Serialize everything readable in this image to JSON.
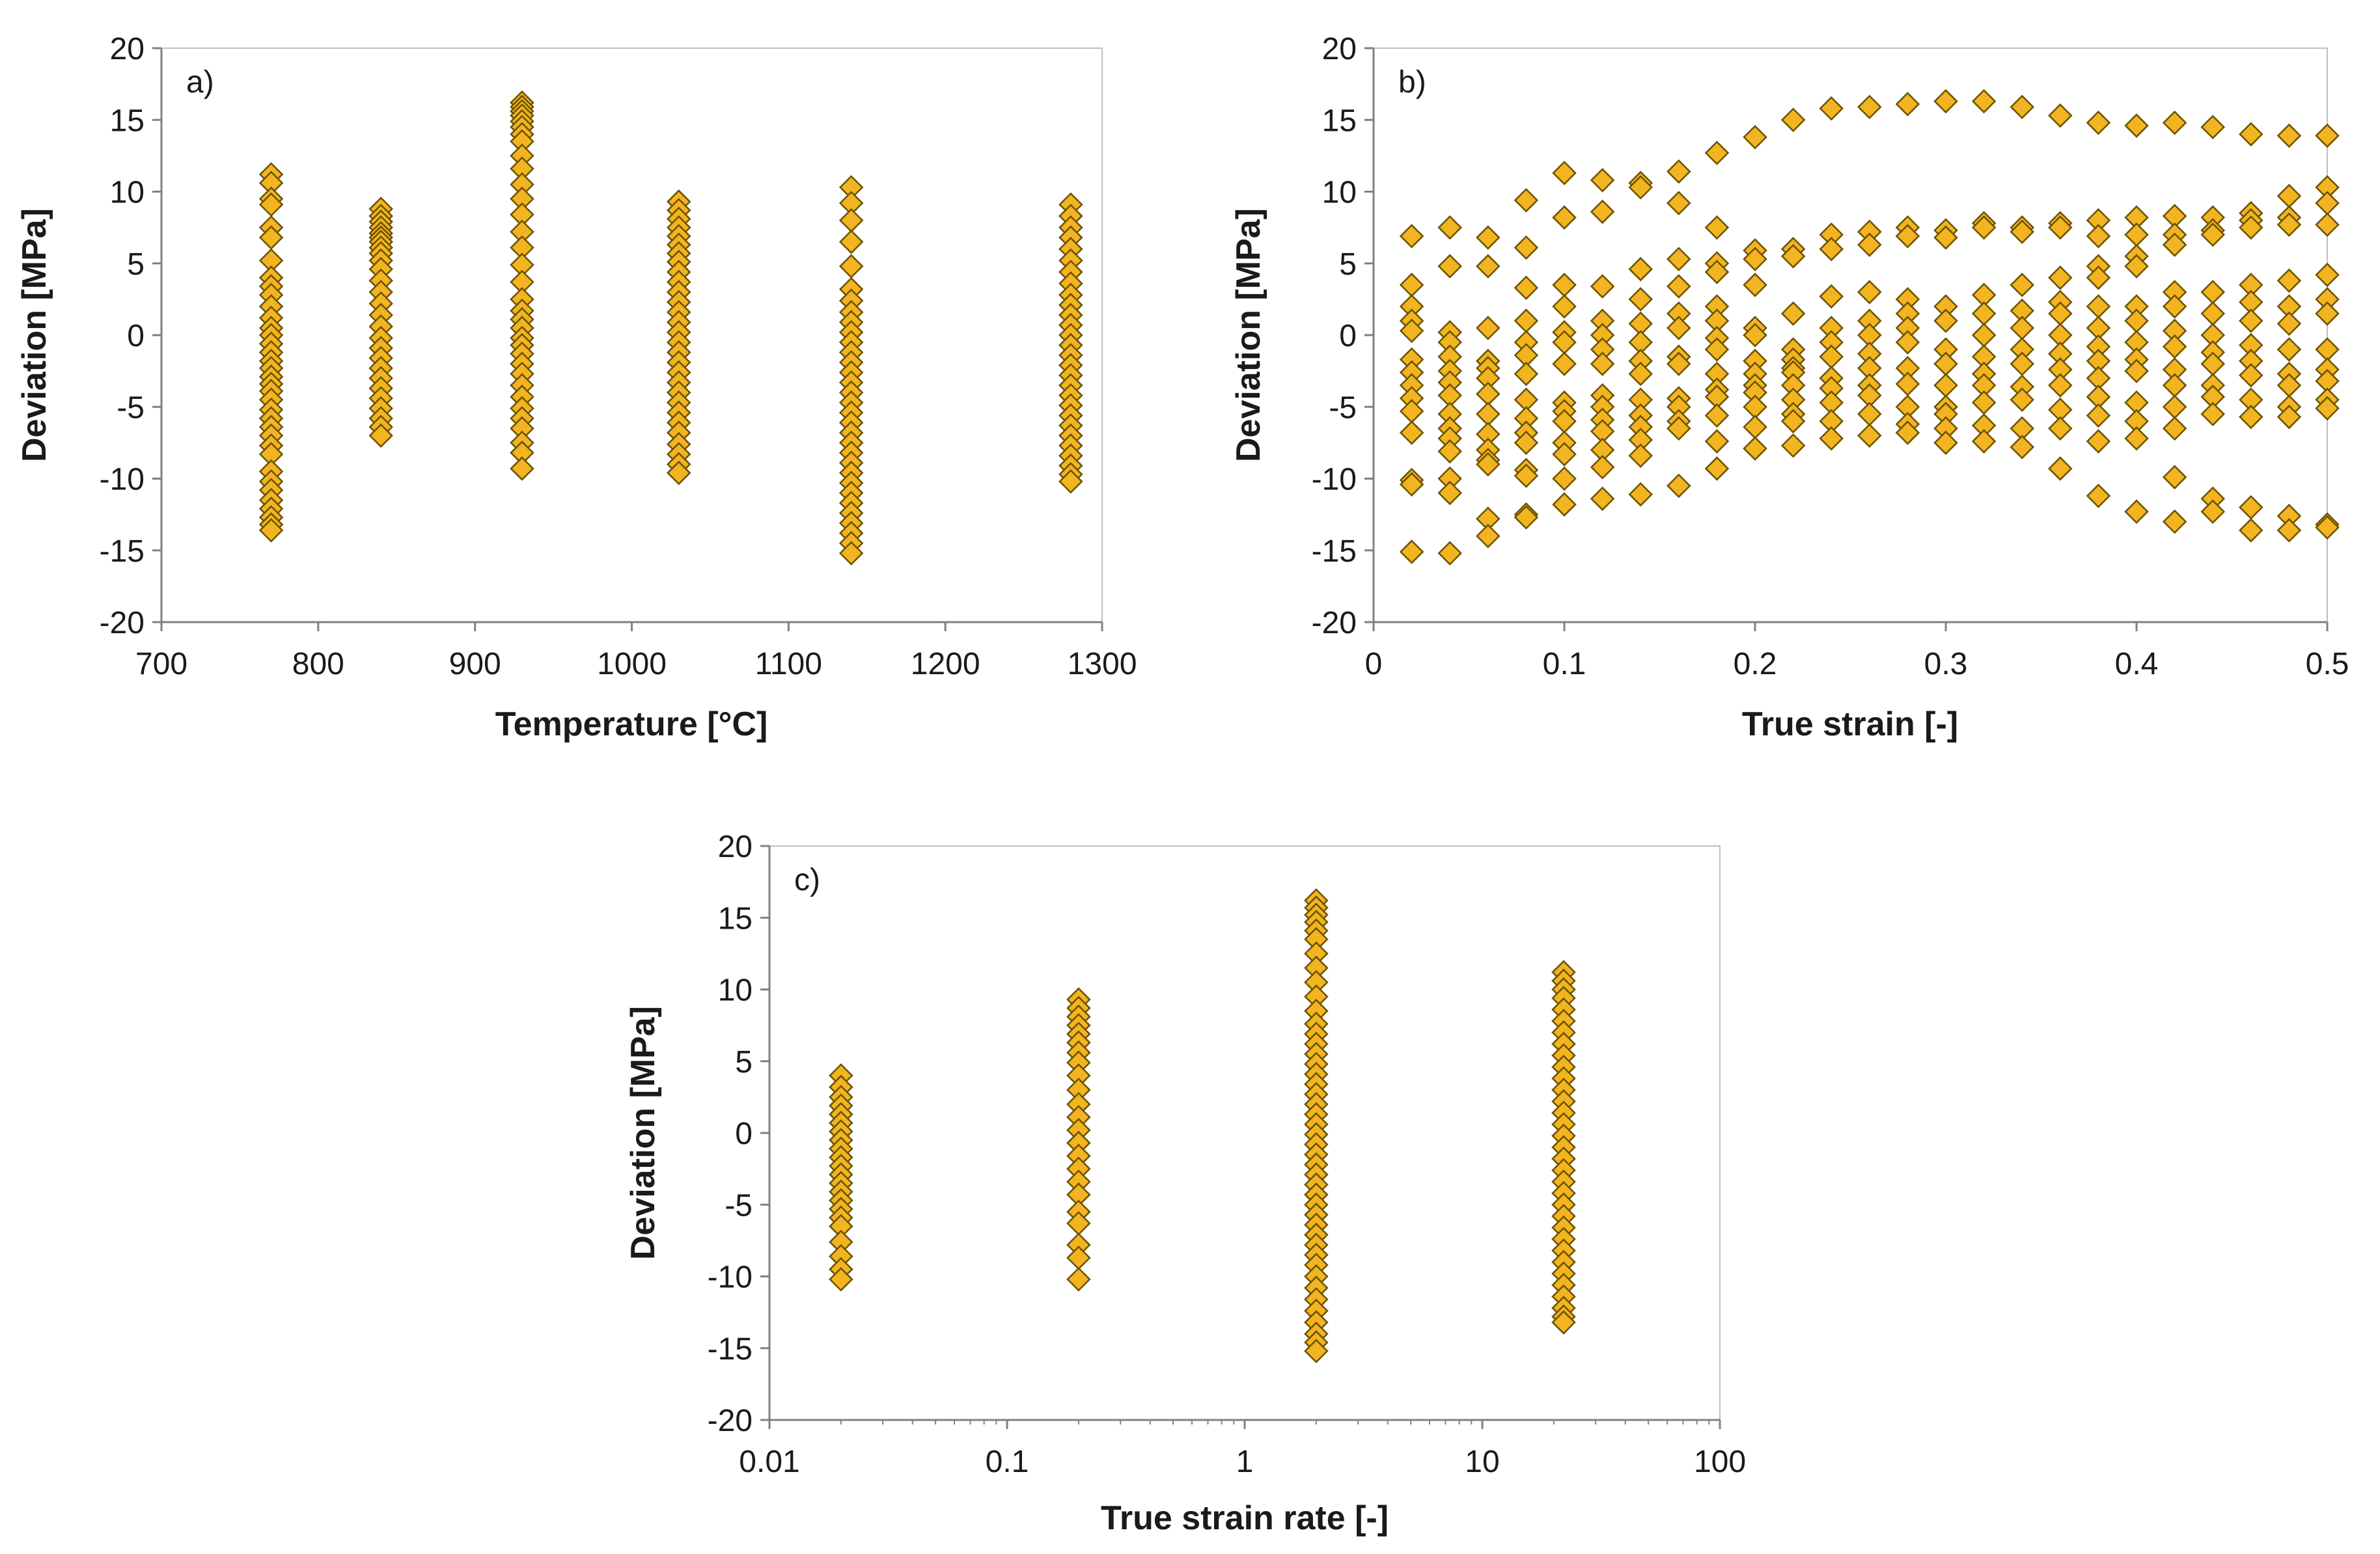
{
  "chart_data": [
    {
      "type": "scatter",
      "panel_label": "a)",
      "xlabel": "Temperature [°C]",
      "ylabel": "Deviation [MPa]",
      "xlim": [
        700,
        1300
      ],
      "ylim": [
        -20,
        20
      ],
      "xticks": [
        700,
        800,
        900,
        1000,
        1100,
        1200,
        1300
      ],
      "yticks": [
        -20,
        -15,
        -10,
        -5,
        0,
        5,
        10,
        15,
        20
      ],
      "xscale": "linear",
      "grid": false,
      "marker": "diamond",
      "marker_color": "#F2B420",
      "marker_edge": "#6B5200",
      "columns": [
        {
          "x": 770,
          "y": [
            11.2,
            10.6,
            9.5,
            9.1,
            7.5,
            6.8,
            5.2,
            4.0,
            3.4,
            2.8,
            2.0,
            1.2,
            0.5,
            0.0,
            -0.6,
            -1.2,
            -1.8,
            -2.3,
            -2.9,
            -3.4,
            -3.9,
            -4.5,
            -5.2,
            -5.8,
            -6.4,
            -7.0,
            -7.7,
            -8.3,
            -9.5,
            -10.2,
            -10.8,
            -11.5,
            -12.1,
            -12.7,
            -13.2,
            -13.6
          ]
        },
        {
          "x": 840,
          "y": [
            8.8,
            8.3,
            7.9,
            7.5,
            7.1,
            6.8,
            6.5,
            6.1,
            5.7,
            5.2,
            4.6,
            3.8,
            3.0,
            2.2,
            1.4,
            0.6,
            -0.2,
            -0.9,
            -1.6,
            -2.3,
            -3.0,
            -3.7,
            -4.4,
            -5.1,
            -5.8,
            -6.4,
            -7.0
          ]
        },
        {
          "x": 930,
          "y": [
            16.2,
            15.9,
            15.6,
            15.3,
            14.9,
            14.5,
            14.0,
            13.5,
            12.5,
            11.6,
            10.5,
            9.5,
            8.4,
            7.2,
            6.1,
            4.9,
            3.7,
            2.5,
            1.7,
            1.1,
            0.5,
            -0.2,
            -0.7,
            -1.3,
            -2.0,
            -2.7,
            -3.5,
            -4.3,
            -5.1,
            -5.8,
            -6.5,
            -7.5,
            -8.2,
            -9.3
          ]
        },
        {
          "x": 1030,
          "y": [
            9.3,
            8.7,
            8.1,
            7.5,
            6.9,
            6.3,
            5.7,
            5.1,
            4.4,
            3.7,
            3.0,
            2.3,
            1.6,
            0.9,
            0.2,
            -0.5,
            -1.2,
            -1.9,
            -2.6,
            -3.3,
            -4.0,
            -4.7,
            -5.4,
            -6.1,
            -6.8,
            -7.6,
            -8.3,
            -9.0,
            -9.6
          ]
        },
        {
          "x": 1140,
          "y": [
            10.3,
            9.2,
            8.0,
            6.5,
            4.8,
            3.2,
            2.4,
            1.6,
            0.9,
            0.2,
            -0.5,
            -1.2,
            -1.9,
            -2.6,
            -3.3,
            -4.0,
            -4.7,
            -5.4,
            -6.1,
            -6.8,
            -7.5,
            -8.2,
            -8.9,
            -9.6,
            -10.3,
            -11.0,
            -11.7,
            -12.4,
            -13.1,
            -13.8,
            -14.5,
            -15.2
          ]
        },
        {
          "x": 1280,
          "y": [
            9.1,
            8.3,
            7.5,
            6.8,
            6.0,
            5.2,
            4.4,
            3.6,
            2.8,
            2.1,
            1.4,
            0.7,
            0.0,
            -0.7,
            -1.4,
            -2.1,
            -2.8,
            -3.5,
            -4.2,
            -4.9,
            -5.6,
            -6.3,
            -7.0,
            -7.7,
            -8.4,
            -9.1,
            -9.7,
            -10.2
          ]
        }
      ]
    },
    {
      "type": "scatter",
      "panel_label": "b)",
      "xlabel": "True strain [-]",
      "ylabel": "Deviation [MPa]",
      "xlim": [
        0,
        0.5
      ],
      "ylim": [
        -20,
        20
      ],
      "xticks": [
        0,
        0.1,
        0.2,
        0.3,
        0.4,
        0.5
      ],
      "yticks": [
        -20,
        -15,
        -10,
        -5,
        0,
        5,
        10,
        15,
        20
      ],
      "xscale": "linear",
      "grid": false,
      "marker": "diamond",
      "marker_color": "#F2B420",
      "marker_edge": "#6B5200",
      "columns": [
        {
          "x": 0.02,
          "y": [
            6.9,
            3.5,
            2.0,
            1.0,
            0.3,
            -1.7,
            -2.6,
            -3.5,
            -4.4,
            -5.3,
            -6.8,
            -10.1,
            -10.4,
            -15.1
          ]
        },
        {
          "x": 0.04,
          "y": [
            7.5,
            4.8,
            0.2,
            -0.5,
            -1.5,
            -2.5,
            -3.3,
            -4.2,
            -5.5,
            -6.5,
            -7.2,
            -8.1,
            -10.0,
            -11.0,
            -15.2
          ]
        },
        {
          "x": 0.06,
          "y": [
            6.8,
            4.8,
            0.5,
            -1.8,
            -2.3,
            -3.0,
            -4.1,
            -5.5,
            -6.9,
            -8.0,
            -8.7,
            -9.0,
            -12.8,
            -14.0
          ]
        },
        {
          "x": 0.08,
          "y": [
            9.4,
            6.1,
            3.3,
            1.0,
            -0.5,
            -1.4,
            -2.7,
            -4.5,
            -5.8,
            -6.8,
            -7.5,
            -9.4,
            -9.8,
            -12.5,
            -12.7
          ]
        },
        {
          "x": 0.1,
          "y": [
            11.3,
            8.2,
            3.5,
            2.0,
            0.2,
            -0.5,
            -2.0,
            -4.7,
            -5.3,
            -6.0,
            -7.5,
            -8.3,
            -10.0,
            -11.8
          ]
        },
        {
          "x": 0.12,
          "y": [
            10.8,
            8.6,
            3.4,
            1.0,
            0.0,
            -1.0,
            -2.0,
            -4.2,
            -5.0,
            -5.9,
            -6.7,
            -8.0,
            -9.2,
            -11.4
          ]
        },
        {
          "x": 0.14,
          "y": [
            10.6,
            10.3,
            4.6,
            2.5,
            0.8,
            -0.5,
            -1.8,
            -2.7,
            -4.5,
            -5.6,
            -6.4,
            -7.3,
            -8.4,
            -11.1
          ]
        },
        {
          "x": 0.16,
          "y": [
            11.4,
            9.2,
            5.3,
            3.4,
            1.5,
            0.5,
            -1.5,
            -2.0,
            -4.4,
            -5.0,
            -6.0,
            -6.5,
            -10.5
          ]
        },
        {
          "x": 0.18,
          "y": [
            12.7,
            7.5,
            5.0,
            4.4,
            2.0,
            1.0,
            -0.2,
            -1.0,
            -2.7,
            -3.8,
            -4.3,
            -5.6,
            -7.4,
            -9.3
          ]
        },
        {
          "x": 0.2,
          "y": [
            13.8,
            5.9,
            5.3,
            3.5,
            0.5,
            0.0,
            -1.8,
            -2.7,
            -3.5,
            -4.0,
            -5.0,
            -6.4,
            -7.9
          ]
        },
        {
          "x": 0.22,
          "y": [
            15.0,
            6.0,
            5.5,
            1.5,
            -1.0,
            -1.7,
            -2.3,
            -2.6,
            -3.5,
            -4.5,
            -5.5,
            -6.0,
            -7.7
          ]
        },
        {
          "x": 0.24,
          "y": [
            15.8,
            7.0,
            6.0,
            2.7,
            0.5,
            -0.5,
            -1.5,
            -3.0,
            -3.7,
            -4.7,
            -6.0,
            -7.2
          ]
        },
        {
          "x": 0.26,
          "y": [
            15.9,
            7.2,
            6.3,
            3.0,
            1.0,
            0.0,
            -1.3,
            -2.3,
            -3.5,
            -4.2,
            -5.5,
            -7.0
          ]
        },
        {
          "x": 0.28,
          "y": [
            16.1,
            7.5,
            6.9,
            2.5,
            1.5,
            0.5,
            -0.5,
            -2.3,
            -3.4,
            -5.0,
            -6.2,
            -6.8
          ]
        },
        {
          "x": 0.3,
          "y": [
            16.3,
            7.3,
            6.8,
            2.0,
            1.0,
            -1.0,
            -2.0,
            -3.5,
            -5.0,
            -5.5,
            -6.5,
            -7.5
          ]
        },
        {
          "x": 0.32,
          "y": [
            16.3,
            7.8,
            7.5,
            2.8,
            1.5,
            0.0,
            -1.5,
            -2.7,
            -3.5,
            -4.7,
            -6.3,
            -7.4
          ]
        },
        {
          "x": 0.34,
          "y": [
            15.9,
            7.5,
            7.2,
            3.5,
            1.7,
            0.5,
            -1.0,
            -2.0,
            -3.6,
            -4.5,
            -6.5,
            -7.8
          ]
        },
        {
          "x": 0.36,
          "y": [
            15.3,
            7.8,
            7.5,
            4.0,
            2.3,
            1.5,
            0.0,
            -1.3,
            -2.4,
            -3.5,
            -5.2,
            -6.5,
            -9.3
          ]
        },
        {
          "x": 0.38,
          "y": [
            14.8,
            8.0,
            6.9,
            4.8,
            4.0,
            2.0,
            0.5,
            -0.8,
            -1.8,
            -3.0,
            -4.3,
            -5.6,
            -7.4,
            -11.2
          ]
        },
        {
          "x": 0.4,
          "y": [
            14.6,
            8.2,
            7.0,
            5.5,
            4.8,
            2.0,
            1.0,
            -0.5,
            -1.7,
            -2.5,
            -4.7,
            -6.0,
            -7.2,
            -12.3
          ]
        },
        {
          "x": 0.42,
          "y": [
            14.8,
            8.3,
            7.0,
            6.3,
            3.0,
            2.0,
            0.3,
            -0.8,
            -2.4,
            -3.5,
            -5.0,
            -6.5,
            -9.9,
            -13.0
          ]
        },
        {
          "x": 0.44,
          "y": [
            14.5,
            8.2,
            7.3,
            7.0,
            3.0,
            1.5,
            0.0,
            -1.2,
            -2.0,
            -3.5,
            -4.3,
            -5.5,
            -11.4,
            -12.3
          ]
        },
        {
          "x": 0.46,
          "y": [
            14.0,
            8.5,
            8.0,
            7.5,
            3.5,
            2.3,
            1.0,
            -0.7,
            -1.8,
            -2.8,
            -4.5,
            -5.7,
            -12.0,
            -13.6
          ]
        },
        {
          "x": 0.48,
          "y": [
            13.9,
            9.7,
            8.2,
            7.7,
            3.8,
            2.0,
            0.8,
            -1.0,
            -2.7,
            -3.5,
            -5.0,
            -5.7,
            -12.6,
            -13.6
          ]
        },
        {
          "x": 0.5,
          "y": [
            13.9,
            10.3,
            9.2,
            7.7,
            4.2,
            2.5,
            1.5,
            -1.0,
            -2.4,
            -3.2,
            -4.5,
            -5.1,
            -13.2,
            -13.4
          ]
        }
      ]
    },
    {
      "type": "scatter",
      "panel_label": "c)",
      "xlabel": "True strain rate [-]",
      "ylabel": "Deviation [MPa]",
      "xlim": [
        0.01,
        100
      ],
      "ylim": [
        -20,
        20
      ],
      "xticks": [
        0.01,
        0.1,
        1,
        10,
        100
      ],
      "xtick_labels": [
        "0.01",
        "0.1",
        "1",
        "10",
        "100"
      ],
      "yticks": [
        -20,
        -15,
        -10,
        -5,
        0,
        5,
        10,
        15,
        20
      ],
      "xscale": "log",
      "grid": false,
      "marker": "diamond",
      "marker_color": "#F2B420",
      "marker_edge": "#6B5200",
      "columns": [
        {
          "x": 0.02,
          "y": [
            4.0,
            3.2,
            2.5,
            1.9,
            1.3,
            0.7,
            0.1,
            -0.5,
            -1.1,
            -1.7,
            -2.3,
            -2.9,
            -3.5,
            -4.1,
            -4.7,
            -5.3,
            -5.9,
            -6.5,
            -7.6,
            -8.6,
            -9.5,
            -10.2
          ]
        },
        {
          "x": 0.2,
          "y": [
            9.3,
            8.7,
            8.1,
            7.5,
            6.9,
            6.3,
            5.6,
            4.9,
            4.0,
            3.0,
            2.0,
            1.1,
            0.2,
            -0.7,
            -1.6,
            -2.5,
            -3.4,
            -4.3,
            -5.5,
            -6.3,
            -7.8,
            -8.7,
            -10.2
          ]
        },
        {
          "x": 2,
          "y": [
            16.2,
            15.7,
            15.2,
            14.7,
            14.1,
            13.5,
            12.5,
            11.5,
            10.5,
            9.5,
            8.5,
            7.6,
            6.9,
            6.2,
            5.5,
            4.8,
            4.1,
            3.4,
            2.7,
            2.0,
            1.3,
            0.6,
            -0.1,
            -0.8,
            -1.5,
            -2.2,
            -2.9,
            -3.6,
            -4.3,
            -5.0,
            -5.7,
            -6.4,
            -7.1,
            -7.8,
            -8.5,
            -9.2,
            -10.0,
            -10.8,
            -11.6,
            -12.4,
            -13.2,
            -14.0,
            -14.6,
            -15.2
          ]
        },
        {
          "x": 22,
          "y": [
            11.2,
            10.6,
            10.0,
            9.4,
            8.6,
            7.8,
            7.0,
            6.2,
            5.4,
            4.6,
            3.8,
            3.0,
            2.2,
            1.4,
            0.6,
            -0.2,
            -1.0,
            -1.8,
            -2.6,
            -3.4,
            -4.2,
            -5.0,
            -5.8,
            -6.6,
            -7.4,
            -8.2,
            -9.0,
            -9.8,
            -10.6,
            -11.4,
            -12.2,
            -12.8,
            -13.2
          ]
        }
      ]
    }
  ]
}
